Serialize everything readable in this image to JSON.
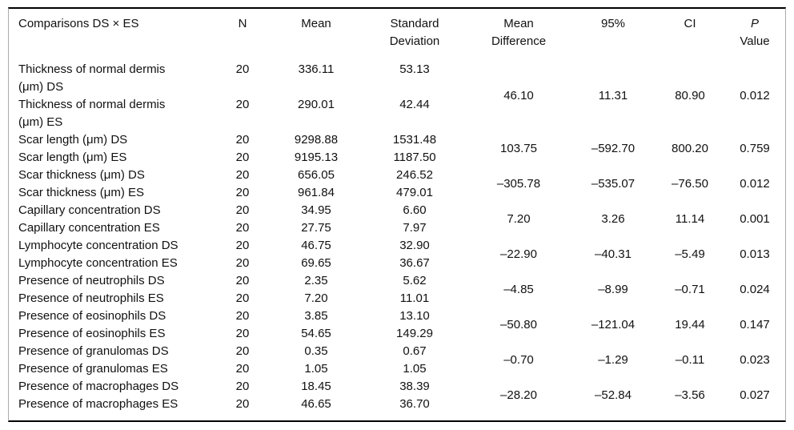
{
  "table": {
    "headers": {
      "comparisons": "Comparisons DS × ES",
      "n": "N",
      "mean": "Mean",
      "standard_deviation": "Standard\nDeviation",
      "mean_difference": "Mean\nDifference",
      "ci95": "95%",
      "ci": "CI",
      "p": "P",
      "p_value_line2": "Value"
    },
    "groups": [
      {
        "rows": [
          {
            "label": "Thickness of normal dermis (μm) DS",
            "n": "20",
            "mean": "336.11",
            "sd": "53.13"
          },
          {
            "label": "Thickness of normal dermis (μm) ES",
            "n": "20",
            "mean": "290.01",
            "sd": "42.44"
          }
        ],
        "mean_difference": "46.10",
        "ci_lower": "11.31",
        "ci_upper": "80.90",
        "p_value": "0.012"
      },
      {
        "rows": [
          {
            "label": "Scar length (μm) DS",
            "n": "20",
            "mean": "9298.88",
            "sd": "1531.48"
          },
          {
            "label": "Scar length (μm) ES",
            "n": "20",
            "mean": "9195.13",
            "sd": "1187.50"
          }
        ],
        "mean_difference": "103.75",
        "ci_lower": "–592.70",
        "ci_upper": "800.20",
        "p_value": "0.759"
      },
      {
        "rows": [
          {
            "label": "Scar thickness (μm) DS",
            "n": "20",
            "mean": "656.05",
            "sd": "246.52"
          },
          {
            "label": "Scar thickness (μm) ES",
            "n": "20",
            "mean": "961.84",
            "sd": "479.01"
          }
        ],
        "mean_difference": "–305.78",
        "ci_lower": "–535.07",
        "ci_upper": "–76.50",
        "p_value": "0.012"
      },
      {
        "rows": [
          {
            "label": "Capillary concentration DS",
            "n": "20",
            "mean": "34.95",
            "sd": "6.60"
          },
          {
            "label": "Capillary concentration ES",
            "n": "20",
            "mean": "27.75",
            "sd": "7.97"
          }
        ],
        "mean_difference": "7.20",
        "ci_lower": "3.26",
        "ci_upper": "11.14",
        "p_value": "0.001"
      },
      {
        "rows": [
          {
            "label": "Lymphocyte concentration DS",
            "n": "20",
            "mean": "46.75",
            "sd": "32.90"
          },
          {
            "label": "Lymphocyte concentration ES",
            "n": "20",
            "mean": "69.65",
            "sd": "36.67"
          }
        ],
        "mean_difference": "–22.90",
        "ci_lower": "–40.31",
        "ci_upper": "–5.49",
        "p_value": "0.013"
      },
      {
        "rows": [
          {
            "label": "Presence of neutrophils DS",
            "n": "20",
            "mean": "2.35",
            "sd": "5.62"
          },
          {
            "label": "Presence of neutrophils ES",
            "n": "20",
            "mean": "7.20",
            "sd": "11.01"
          }
        ],
        "mean_difference": "–4.85",
        "ci_lower": "–8.99",
        "ci_upper": "–0.71",
        "p_value": "0.024"
      },
      {
        "rows": [
          {
            "label": "Presence of eosinophils DS",
            "n": "20",
            "mean": "3.85",
            "sd": "13.10"
          },
          {
            "label": "Presence of eosinophils ES",
            "n": "20",
            "mean": "54.65",
            "sd": "149.29"
          }
        ],
        "mean_difference": "–50.80",
        "ci_lower": "–121.04",
        "ci_upper": "19.44",
        "p_value": "0.147"
      },
      {
        "rows": [
          {
            "label": "Presence of granulomas DS",
            "n": "20",
            "mean": "0.35",
            "sd": "0.67"
          },
          {
            "label": "Presence of granulomas ES",
            "n": "20",
            "mean": "1.05",
            "sd": "1.05"
          }
        ],
        "mean_difference": "–0.70",
        "ci_lower": "–1.29",
        "ci_upper": "–0.11",
        "p_value": "0.023"
      },
      {
        "rows": [
          {
            "label": "Presence of macrophages DS",
            "n": "20",
            "mean": "18.45",
            "sd": "38.39"
          },
          {
            "label": "Presence of macrophages ES",
            "n": "20",
            "mean": "46.65",
            "sd": "36.70"
          }
        ],
        "mean_difference": "–28.20",
        "ci_lower": "–52.84",
        "ci_upper": "–3.56",
        "p_value": "0.027"
      }
    ]
  },
  "colors": {
    "text": "#111111",
    "rule_heavy": "#000000",
    "rule_side": "#ababab",
    "background": "#ffffff"
  }
}
